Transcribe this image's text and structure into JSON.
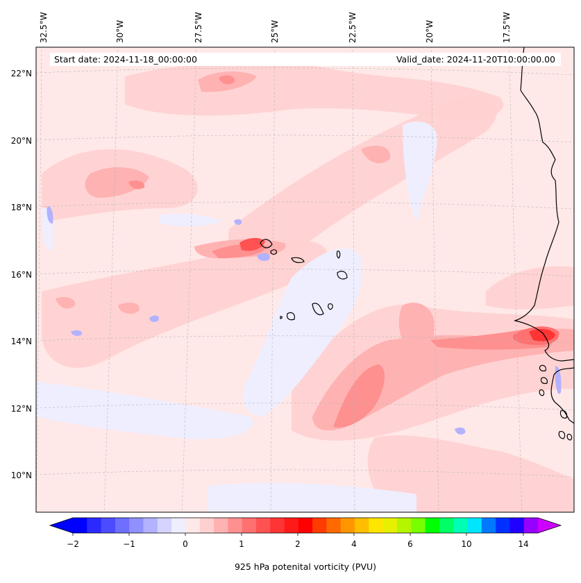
{
  "map": {
    "info": {
      "start_label": "Start date: 2024-11-18_00:00:00",
      "valid_label": "Valid_date: 2024-11-20T10:00:00.00"
    },
    "lon_labels": [
      "32.5°W",
      "30°W",
      "27.5°W",
      "25°W",
      "22.5°W",
      "20°W",
      "17.5°W"
    ],
    "lat_labels": [
      "22°N",
      "20°N",
      "18°N",
      "16°N",
      "14°N",
      "12°N",
      "10°N"
    ],
    "background_color": "#ffe8e8",
    "variable": "925 hPa potential vorticity"
  },
  "colorbar": {
    "title": "925 hPa potenital vorticity (PVU)",
    "tick_labels": [
      "−2",
      "−1",
      "0",
      "1",
      "2",
      "4",
      "6",
      "10",
      "14"
    ],
    "colors": [
      "#0000ff",
      "#2a2aff",
      "#4c4cff",
      "#6e6eff",
      "#9090ff",
      "#b2b2ff",
      "#d4d4ff",
      "#eeeeff",
      "#ffe8e8",
      "#ffd0d0",
      "#ffb2b2",
      "#ff9090",
      "#ff7070",
      "#ff5252",
      "#ff3434",
      "#ff1a1a",
      "#ff0000",
      "#ff3c00",
      "#ff6a00",
      "#ff9600",
      "#ffbe00",
      "#ffe600",
      "#e6f000",
      "#b4f500",
      "#78ff00",
      "#00ff00",
      "#00ff64",
      "#00ffb4",
      "#00e6ff",
      "#0078ff",
      "#0030ff",
      "#2000ff",
      "#9600ff"
    ],
    "extend_low_color": "#0000ff",
    "extend_high_color": "#cc00ff"
  }
}
